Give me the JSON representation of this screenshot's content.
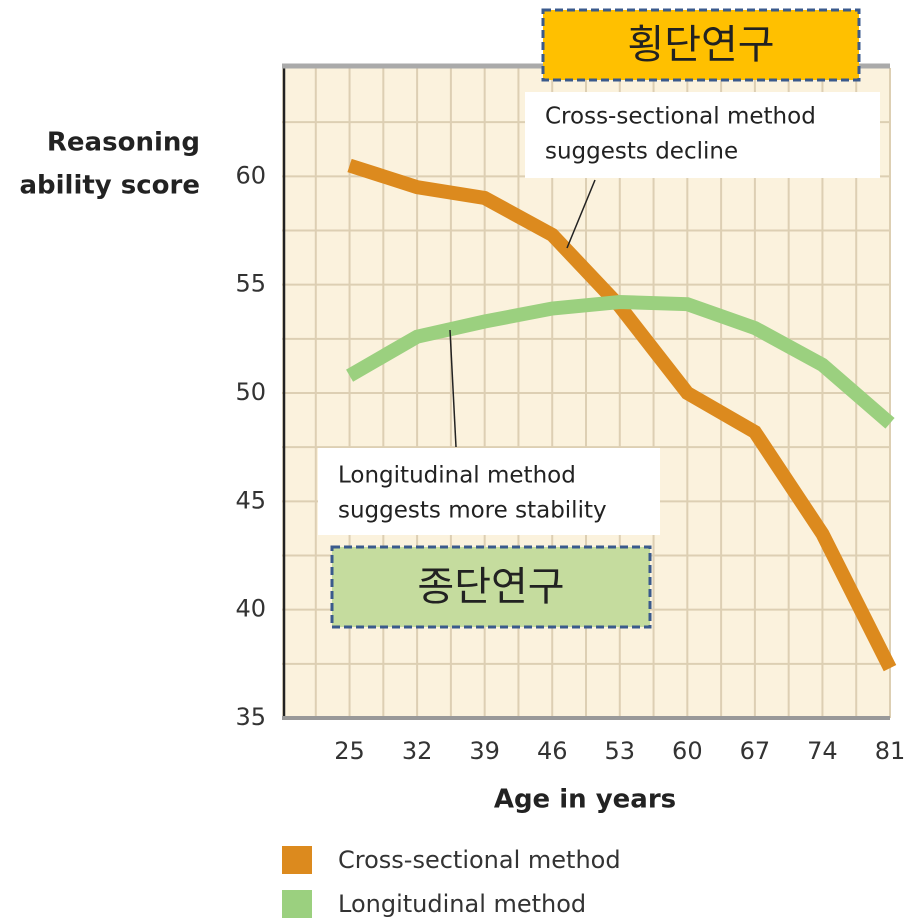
{
  "chart_data": {
    "type": "line",
    "ylabel": [
      "Reasoning",
      "ability score"
    ],
    "xlabel": "Age in years",
    "x": [
      25,
      32,
      39,
      46,
      53,
      60,
      67,
      74,
      81
    ],
    "xlim": [
      18,
      81
    ],
    "xticks": [
      25,
      32,
      39,
      46,
      53,
      60,
      67,
      74,
      81
    ],
    "ylim": [
      35,
      65
    ],
    "yticks": [
      35,
      40,
      45,
      50,
      55,
      60
    ],
    "grid": true,
    "series": [
      {
        "name": "Cross-sectional method",
        "color": "#dc8a1e",
        "values": [
          60.5,
          59.5,
          59,
          57.3,
          54,
          50,
          48.2,
          43.5,
          37.3
        ]
      },
      {
        "name": "Longitudinal method",
        "color": "#9bd07f",
        "values": [
          50.8,
          52.6,
          53.3,
          53.9,
          54.2,
          54.1,
          53,
          51.3,
          48.6
        ]
      }
    ],
    "annotations": [
      {
        "text": [
          "Cross-sectional method",
          "suggests decline"
        ]
      },
      {
        "text": [
          "Longitudinal method",
          "suggests more stability"
        ]
      }
    ],
    "korean_labels": [
      "횡단연구",
      "종단연구"
    ]
  }
}
